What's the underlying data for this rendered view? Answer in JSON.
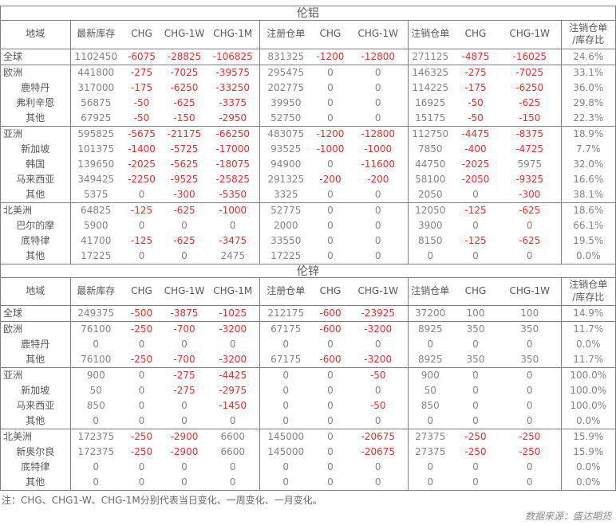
{
  "colors": {
    "negative": "#ee2e2c",
    "neutral": "#858585",
    "label": "#595959",
    "border": "#808080"
  },
  "columns": [
    "地域",
    "最新库存",
    "CHG",
    "CHG-1W",
    "CHG-1M",
    "注册仓单",
    "CHG",
    "CHG-1W",
    "注销仓单",
    "CHG",
    "CHG-1W",
    "注销仓单\n/库存比"
  ],
  "tables": [
    {
      "title": "伦铝",
      "rows": [
        {
          "region": "全球",
          "child": false,
          "sep": false,
          "values": [
            "1102450",
            "-6075",
            "-28825",
            "-106825",
            "831325",
            "-1200",
            "-12800",
            "271125",
            "-4875",
            "-16025",
            "24.6%"
          ]
        },
        {
          "region": "欧洲",
          "child": false,
          "sep": true,
          "values": [
            "441800",
            "-275",
            "-7025",
            "-39575",
            "295475",
            "0",
            "0",
            "146325",
            "-275",
            "-7025",
            "33.1%"
          ]
        },
        {
          "region": "鹿特丹",
          "child": true,
          "sep": false,
          "values": [
            "317000",
            "-175",
            "-6250",
            "-33250",
            "202775",
            "0",
            "0",
            "114225",
            "-175",
            "-6250",
            "36.0%"
          ]
        },
        {
          "region": "弗利辛恩",
          "child": true,
          "sep": false,
          "values": [
            "56875",
            "-50",
            "-625",
            "-3375",
            "39950",
            "0",
            "0",
            "16925",
            "-50",
            "-625",
            "29.8%"
          ]
        },
        {
          "region": "其他",
          "child": true,
          "sep": false,
          "values": [
            "67925",
            "-50",
            "-150",
            "-2950",
            "52750",
            "0",
            "0",
            "15175",
            "-50",
            "-150",
            "22.3%"
          ]
        },
        {
          "region": "亚洲",
          "child": false,
          "sep": true,
          "values": [
            "595825",
            "-5675",
            "-21175",
            "-66250",
            "483075",
            "-1200",
            "-12800",
            "112750",
            "-4475",
            "-8375",
            "18.9%"
          ]
        },
        {
          "region": "新加坡",
          "child": true,
          "sep": false,
          "values": [
            "101375",
            "-1400",
            "-5725",
            "-17000",
            "93525",
            "-1000",
            "-1000",
            "7850",
            "-400",
            "-4725",
            "7.7%"
          ]
        },
        {
          "region": "韩国",
          "child": true,
          "sep": false,
          "values": [
            "139650",
            "-2025",
            "-5625",
            "-18075",
            "94900",
            "0",
            "-11600",
            "44750",
            "-2025",
            "5975",
            "32.0%"
          ]
        },
        {
          "region": "马来西亚",
          "child": true,
          "sep": false,
          "values": [
            "349425",
            "-2250",
            "-9525",
            "-25825",
            "291325",
            "-200",
            "-200",
            "58100",
            "-2050",
            "-9325",
            "16.6%"
          ]
        },
        {
          "region": "其他",
          "child": true,
          "sep": false,
          "values": [
            "5375",
            "0",
            "-300",
            "-5350",
            "3325",
            "0",
            "0",
            "2050",
            "0",
            "-300",
            "38.1%"
          ]
        },
        {
          "region": "北美洲",
          "child": false,
          "sep": true,
          "values": [
            "64825",
            "-125",
            "-625",
            "-1000",
            "52775",
            "0",
            "0",
            "12050",
            "-125",
            "-625",
            "18.6%"
          ]
        },
        {
          "region": "巴尔的摩",
          "child": true,
          "sep": false,
          "values": [
            "5900",
            "0",
            "0",
            "0",
            "2000",
            "0",
            "0",
            "3900",
            "0",
            "0",
            "66.1%"
          ]
        },
        {
          "region": "底特律",
          "child": true,
          "sep": false,
          "values": [
            "41700",
            "-125",
            "-625",
            "-3475",
            "33550",
            "0",
            "0",
            "8150",
            "-125",
            "-625",
            "19.5%"
          ]
        },
        {
          "region": "其他",
          "child": true,
          "sep": false,
          "values": [
            "17225",
            "0",
            "0",
            "2475",
            "17225",
            "0",
            "0",
            "0",
            "0",
            "0",
            "0.0%"
          ]
        }
      ]
    },
    {
      "title": "伦锌",
      "rows": [
        {
          "region": "全球",
          "child": false,
          "sep": false,
          "values": [
            "249375",
            "-500",
            "-3875",
            "-1025",
            "212175",
            "-600",
            "-23925",
            "37200",
            "100",
            "100",
            "14.9%"
          ]
        },
        {
          "region": "欧洲",
          "child": false,
          "sep": true,
          "values": [
            "76100",
            "-250",
            "-700",
            "-3200",
            "67175",
            "-600",
            "-3200",
            "8925",
            "350",
            "350",
            "11.7%"
          ]
        },
        {
          "region": "鹿特丹",
          "child": true,
          "sep": false,
          "values": [
            "0",
            "0",
            "0",
            "0",
            "0",
            "0",
            "0",
            "0",
            "0",
            "0",
            "0.0%"
          ]
        },
        {
          "region": "其他",
          "child": true,
          "sep": false,
          "values": [
            "76100",
            "-250",
            "-700",
            "-3200",
            "67175",
            "-600",
            "-3200",
            "8925",
            "350",
            "350",
            "11.7%"
          ]
        },
        {
          "region": "亚洲",
          "child": false,
          "sep": true,
          "values": [
            "900",
            "0",
            "-275",
            "-4425",
            "0",
            "0",
            "-50",
            "900",
            "0",
            "0",
            "100.0%"
          ]
        },
        {
          "region": "新加坡",
          "child": true,
          "sep": false,
          "values": [
            "50",
            "0",
            "-275",
            "-2975",
            "0",
            "0",
            "0",
            "50",
            "0",
            "0",
            "100.0%"
          ]
        },
        {
          "region": "马来西亚",
          "child": true,
          "sep": false,
          "values": [
            "850",
            "0",
            "0",
            "-1450",
            "0",
            "0",
            "-50",
            "850",
            "0",
            "0",
            "100.0%"
          ]
        },
        {
          "region": "其他",
          "child": true,
          "sep": false,
          "values": [
            "0",
            "0",
            "0",
            "0",
            "0",
            "0",
            "0",
            "0",
            "0",
            "0",
            "0.0%"
          ]
        },
        {
          "region": "北美洲",
          "child": false,
          "sep": true,
          "values": [
            "172375",
            "-250",
            "-2900",
            "6600",
            "145000",
            "0",
            "-20675",
            "27375",
            "-250",
            "-250",
            "15.9%"
          ]
        },
        {
          "region": "新奥尔良",
          "child": true,
          "sep": false,
          "values": [
            "172375",
            "-250",
            "-2900",
            "6600",
            "145000",
            "0",
            "-20675",
            "27375",
            "-250",
            "-250",
            "15.9%"
          ]
        },
        {
          "region": "底特律",
          "child": true,
          "sep": false,
          "values": [
            "0",
            "0",
            "0",
            "0",
            "0",
            "0",
            "0",
            "0",
            "0",
            "0",
            "0.0%"
          ]
        },
        {
          "region": "其他",
          "child": true,
          "sep": false,
          "values": [
            "0",
            "0",
            "0",
            "0",
            "0",
            "0",
            "0",
            "0",
            "0",
            "0",
            "0.0%"
          ]
        }
      ]
    }
  ],
  "note": "注：CHG、CHG1-W、CHG-1M分别代表当日变化、一周变化、一月变化。",
  "source": "数据来源：盛达期货"
}
